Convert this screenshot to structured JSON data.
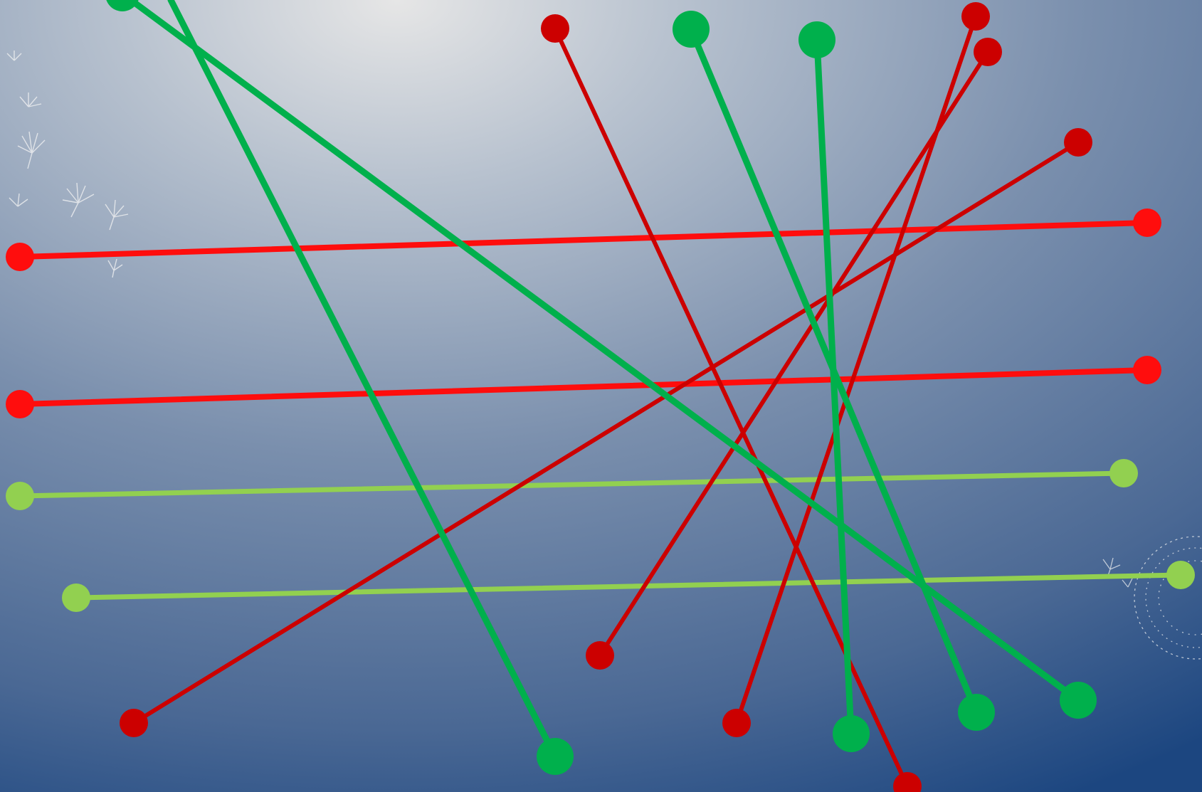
{
  "colors": {
    "background_light": "#e6e6e6",
    "background_dark": "#1c4680",
    "bright_red": "#ff0d0d",
    "dark_red": "#cc0000",
    "green": "#00b04c",
    "light_green": "#92d050"
  },
  "icons": {
    "decoration_left": "dandelion-seeds",
    "decoration_right": "dandelion-puff"
  }
}
